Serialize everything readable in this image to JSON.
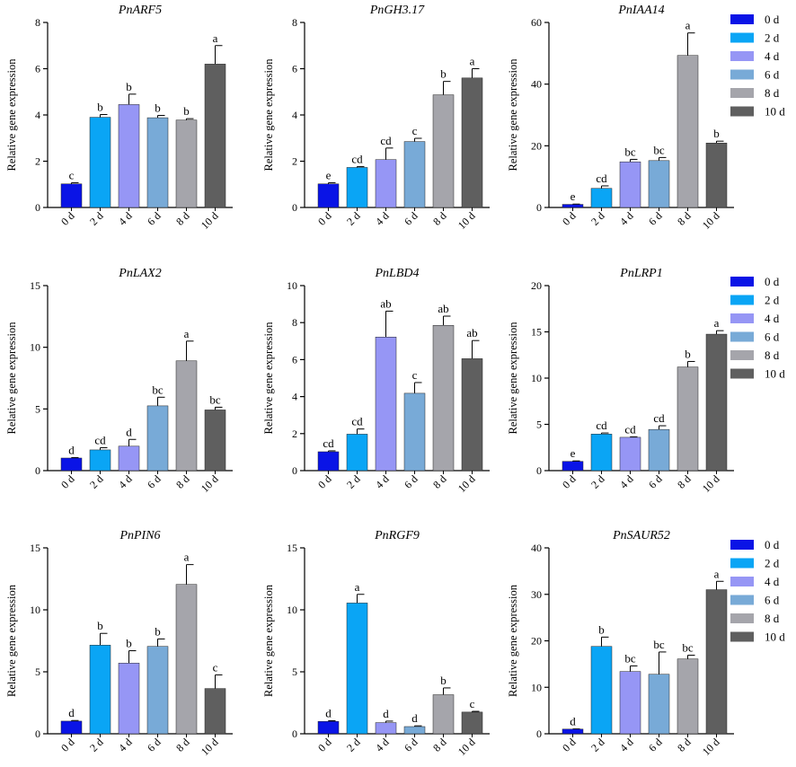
{
  "chart_data": [
    {
      "type": "bar",
      "title": "PnARF5",
      "ylabel": "Relative gene expression",
      "categories": [
        "0 d",
        "2 d",
        "4 d",
        "6 d",
        "8 d",
        "10 d"
      ],
      "values": [
        1.02,
        3.9,
        4.45,
        3.88,
        3.78,
        6.2
      ],
      "errors": [
        0.05,
        0.12,
        0.45,
        0.1,
        0.06,
        0.8
      ],
      "letters": [
        "c",
        "b",
        "b",
        "b",
        "b",
        "a"
      ],
      "ylim": [
        0,
        8
      ],
      "yticks": [
        0,
        2,
        4,
        6,
        8
      ]
    },
    {
      "type": "bar",
      "title": "PnGH3.17",
      "ylabel": "Relative gene expression",
      "categories": [
        "0 d",
        "2 d",
        "4 d",
        "6 d",
        "8 d",
        "10 d"
      ],
      "values": [
        1.02,
        1.73,
        2.07,
        2.85,
        4.87,
        5.6
      ],
      "errors": [
        0.05,
        0.04,
        0.5,
        0.14,
        0.58,
        0.4
      ],
      "letters": [
        "e",
        "cd",
        "cd",
        "c",
        "b",
        "a"
      ],
      "ylim": [
        0,
        8
      ],
      "yticks": [
        0,
        2,
        4,
        6,
        8
      ]
    },
    {
      "type": "bar",
      "title": "PnIAA14",
      "ylabel": "Relative gene expression",
      "categories": [
        "0 d",
        "2 d",
        "4 d",
        "6 d",
        "8 d",
        "10 d"
      ],
      "values": [
        1.0,
        6.2,
        14.8,
        15.2,
        49.3,
        20.9
      ],
      "errors": [
        0.1,
        0.8,
        0.8,
        1.0,
        7.3,
        0.6
      ],
      "letters": [
        "e",
        "cd",
        "bc",
        "bc",
        "a",
        "b"
      ],
      "ylim": [
        0,
        60
      ],
      "yticks": [
        0,
        20,
        40,
        60
      ]
    },
    {
      "type": "bar",
      "title": "PnLAX2",
      "ylabel": "Relative gene expression",
      "categories": [
        "0 d",
        "2 d",
        "4 d",
        "6 d",
        "8 d",
        "10 d"
      ],
      "values": [
        1.02,
        1.68,
        1.98,
        5.25,
        8.9,
        4.92
      ],
      "errors": [
        0.04,
        0.18,
        0.55,
        0.7,
        1.6,
        0.22
      ],
      "letters": [
        "d",
        "cd",
        "d",
        "bc",
        "a",
        "bc"
      ],
      "ylim": [
        0,
        15
      ],
      "yticks": [
        0,
        5,
        10,
        15
      ]
    },
    {
      "type": "bar",
      "title": "PnLBD4",
      "ylabel": "Relative gene expression",
      "categories": [
        "0 d",
        "2 d",
        "4 d",
        "6 d",
        "8 d",
        "10 d"
      ],
      "values": [
        1.02,
        1.97,
        7.22,
        4.18,
        7.85,
        6.05
      ],
      "errors": [
        0.05,
        0.28,
        1.4,
        0.58,
        0.5,
        0.98
      ],
      "letters": [
        "cd",
        "cd",
        "ab",
        "c",
        "ab",
        "ab"
      ],
      "ylim": [
        0,
        10
      ],
      "yticks": [
        0,
        2,
        4,
        6,
        8,
        10
      ]
    },
    {
      "type": "bar",
      "title": "PnLRP1",
      "ylabel": "Relative gene expression",
      "categories": [
        "0 d",
        "2 d",
        "4 d",
        "6 d",
        "8 d",
        "10 d"
      ],
      "values": [
        1.0,
        3.95,
        3.6,
        4.45,
        11.2,
        14.75
      ],
      "errors": [
        0.05,
        0.12,
        0.06,
        0.4,
        0.6,
        0.38
      ],
      "letters": [
        "e",
        "cd",
        "cd",
        "cd",
        "b",
        "a"
      ],
      "ylim": [
        0,
        20
      ],
      "yticks": [
        0,
        5,
        10,
        15,
        20
      ]
    },
    {
      "type": "bar",
      "title": "PnPIN6",
      "ylabel": "Relative gene expression",
      "categories": [
        "0 d",
        "2 d",
        "4 d",
        "6 d",
        "8 d",
        "10 d"
      ],
      "values": [
        1.02,
        7.15,
        5.7,
        7.05,
        12.05,
        3.65
      ],
      "errors": [
        0.05,
        0.95,
        1.0,
        0.6,
        1.6,
        1.1
      ],
      "letters": [
        "d",
        "b",
        "b",
        "b",
        "a",
        "c"
      ],
      "ylim": [
        0,
        15
      ],
      "yticks": [
        0,
        5,
        10,
        15
      ]
    },
    {
      "type": "bar",
      "title": "PnRGF9",
      "ylabel": "Relative gene expression",
      "categories": [
        "0 d",
        "2 d",
        "4 d",
        "6 d",
        "8 d",
        "10 d"
      ],
      "values": [
        1.0,
        10.55,
        0.9,
        0.58,
        3.15,
        1.75
      ],
      "errors": [
        0.05,
        0.7,
        0.12,
        0.06,
        0.55,
        0.06
      ],
      "letters": [
        "d",
        "a",
        "d",
        "d",
        "b",
        "c"
      ],
      "ylim": [
        0,
        15
      ],
      "yticks": [
        0,
        5,
        10,
        15
      ]
    },
    {
      "type": "bar",
      "title": "PnSAUR52",
      "ylabel": "Relative gene expression",
      "categories": [
        "0 d",
        "2 d",
        "4 d",
        "6 d",
        "8 d",
        "10 d"
      ],
      "values": [
        1.0,
        18.8,
        13.4,
        12.8,
        16.1,
        31.0
      ],
      "errors": [
        0.05,
        2.0,
        1.2,
        4.8,
        0.8,
        1.8
      ],
      "letters": [
        "d",
        "b",
        "bc",
        "bc",
        "bc",
        "a"
      ],
      "ylim": [
        0,
        40
      ],
      "yticks": [
        0,
        10,
        20,
        30,
        40
      ]
    }
  ],
  "legend": [
    {
      "label": "0 d",
      "color": "#0a14e6"
    },
    {
      "label": "2 d",
      "color": "#0aa5f5"
    },
    {
      "label": "4 d",
      "color": "#9696f5"
    },
    {
      "label": "6 d",
      "color": "#78aad7"
    },
    {
      "label": "8 d",
      "color": "#a5a5ab"
    },
    {
      "label": "10 d",
      "color": "#5f5f5f"
    }
  ]
}
